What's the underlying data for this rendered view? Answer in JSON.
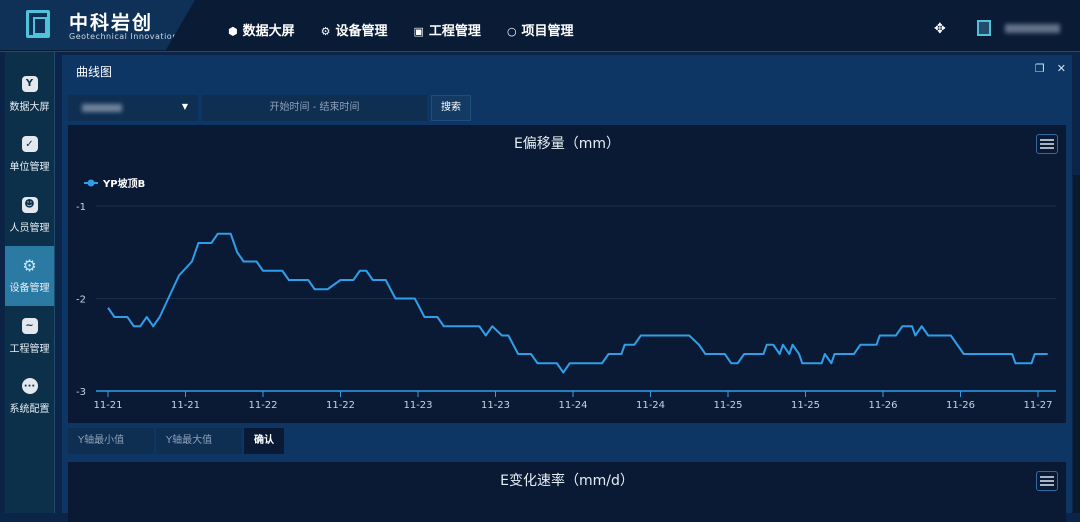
{
  "brand": {
    "name": "中科岩创",
    "subtitle": "Geotechnical Innovation"
  },
  "nav": [
    {
      "label": "数据大屏",
      "icon": "cube-icon"
    },
    {
      "label": "设备管理",
      "icon": "gear-icon"
    },
    {
      "label": "工程管理",
      "icon": "chart-monitor-icon"
    },
    {
      "label": "项目管理",
      "icon": "circle-icon"
    }
  ],
  "sidebar": {
    "items": [
      {
        "label": "数据大屏",
        "icon": "cube-icon"
      },
      {
        "label": "单位管理",
        "icon": "calendar-check-icon"
      },
      {
        "label": "人员管理",
        "icon": "person-card-icon"
      },
      {
        "label": "设备管理",
        "icon": "gear-icon",
        "active": true
      },
      {
        "label": "工程管理",
        "icon": "chart-monitor-icon"
      },
      {
        "label": "系统配置",
        "icon": "more-icon"
      }
    ]
  },
  "panel": {
    "title": "曲线图"
  },
  "filters": {
    "date_placeholder": "开始时间 - 结束时间",
    "search_label": "搜索"
  },
  "yaxis_controls": {
    "min_placeholder": "Y轴最小值",
    "max_placeholder": "Y轴最大值",
    "confirm_label": "确认"
  },
  "colors": {
    "accent": "#2f9ee8",
    "background": "#0a1a35"
  },
  "chart_data": [
    {
      "type": "line",
      "title": "E偏移量（mm）",
      "legend": {
        "position": "top-left"
      },
      "grid": true,
      "ylim": [
        -3,
        -1
      ],
      "yticks": [
        "-1",
        "-2",
        "-3"
      ],
      "xticks": [
        "11-21",
        "11-21",
        "11-22",
        "11-22",
        "11-23",
        "11-23",
        "11-24",
        "11-24",
        "11-25",
        "11-25",
        "11-26",
        "11-26",
        "11-27"
      ],
      "series": [
        {
          "name": "YP坡顶B",
          "color": "#2f9ee8",
          "points": [
            [
              "11-21 00:00",
              -2.1
            ],
            [
              "11-21 01:00",
              -2.2
            ],
            [
              "11-21 03:00",
              -2.2
            ],
            [
              "11-21 04:00",
              -2.3
            ],
            [
              "11-21 05:00",
              -2.3
            ],
            [
              "11-21 06:00",
              -2.2
            ],
            [
              "11-21 07:00",
              -2.3
            ],
            [
              "11-21 08:00",
              -2.2
            ],
            [
              "11-21 10:00",
              -1.9
            ],
            [
              "11-21 11:00",
              -1.75
            ],
            [
              "11-21 13:00",
              -1.6
            ],
            [
              "11-21 14:00",
              -1.4
            ],
            [
              "11-21 16:00",
              -1.4
            ],
            [
              "11-21 17:00",
              -1.3
            ],
            [
              "11-21 19:00",
              -1.3
            ],
            [
              "11-21 20:00",
              -1.5
            ],
            [
              "11-21 21:00",
              -1.6
            ],
            [
              "11-21 23:00",
              -1.6
            ],
            [
              "11-22 00:00",
              -1.7
            ],
            [
              "11-22 03:00",
              -1.7
            ],
            [
              "11-22 04:00",
              -1.8
            ],
            [
              "11-22 07:00",
              -1.8
            ],
            [
              "11-22 08:00",
              -1.9
            ],
            [
              "11-22 10:00",
              -1.9
            ],
            [
              "11-22 12:00",
              -1.8
            ],
            [
              "11-22 14:00",
              -1.8
            ],
            [
              "11-22 15:00",
              -1.7
            ],
            [
              "11-22 16:00",
              -1.7
            ],
            [
              "11-22 17:00",
              -1.8
            ],
            [
              "11-22 19:00",
              -1.8
            ],
            [
              "11-22 20:30",
              -2.0
            ],
            [
              "11-22 23:30",
              -2.0
            ],
            [
              "11-23 01:00",
              -2.2
            ],
            [
              "11-23 03:00",
              -2.2
            ],
            [
              "11-23 04:00",
              -2.3
            ],
            [
              "11-23 09:30",
              -2.3
            ],
            [
              "11-23 10:30",
              -2.4
            ],
            [
              "11-23 11:30",
              -2.3
            ],
            [
              "11-23 13:00",
              -2.4
            ],
            [
              "11-23 14:00",
              -2.4
            ],
            [
              "11-23 15:30",
              -2.6
            ],
            [
              "11-23 17:30",
              -2.6
            ],
            [
              "11-23 18:30",
              -2.7
            ],
            [
              "11-23 21:30",
              -2.7
            ],
            [
              "11-23 22:30",
              -2.8
            ],
            [
              "11-23 23:30",
              -2.7
            ],
            [
              "11-24 04:30",
              -2.7
            ],
            [
              "11-24 05:30",
              -2.6
            ],
            [
              "11-24 07:30",
              -2.6
            ],
            [
              "11-24 08:00",
              -2.5
            ],
            [
              "11-24 09:30",
              -2.5
            ],
            [
              "11-24 10:30",
              -2.4
            ],
            [
              "11-24 18:00",
              -2.4
            ],
            [
              "11-24 19:30",
              -2.5
            ],
            [
              "11-24 20:30",
              -2.6
            ],
            [
              "11-24 23:30",
              -2.6
            ],
            [
              "11-25 00:30",
              -2.7
            ],
            [
              "11-25 01:30",
              -2.7
            ],
            [
              "11-25 02:30",
              -2.6
            ],
            [
              "11-25 05:30",
              -2.6
            ],
            [
              "11-25 06:00",
              -2.5
            ],
            [
              "11-25 07:00",
              -2.5
            ],
            [
              "11-25 08:00",
              -2.6
            ],
            [
              "11-25 08:30",
              -2.5
            ],
            [
              "11-25 09:30",
              -2.6
            ],
            [
              "11-25 10:00",
              -2.5
            ],
            [
              "11-25 11:00",
              -2.6
            ],
            [
              "11-25 11:30",
              -2.7
            ],
            [
              "11-25 14:30",
              -2.7
            ],
            [
              "11-25 15:00",
              -2.6
            ],
            [
              "11-25 16:00",
              -2.7
            ],
            [
              "11-25 16:30",
              -2.6
            ],
            [
              "11-25 19:30",
              -2.6
            ],
            [
              "11-25 20:30",
              -2.5
            ],
            [
              "11-25 23:00",
              -2.5
            ],
            [
              "11-25 23:30",
              -2.4
            ],
            [
              "11-26 02:00",
              -2.4
            ],
            [
              "11-26 03:00",
              -2.3
            ],
            [
              "11-26 04:30",
              -2.3
            ],
            [
              "11-26 05:00",
              -2.4
            ],
            [
              "11-26 06:00",
              -2.3
            ],
            [
              "11-26 07:00",
              -2.4
            ],
            [
              "11-26 10:30",
              -2.4
            ],
            [
              "11-26 12:30",
              -2.6
            ],
            [
              "11-26 20:00",
              -2.6
            ],
            [
              "11-26 20:30",
              -2.7
            ],
            [
              "11-26 23:00",
              -2.7
            ],
            [
              "11-26 23:30",
              -2.6
            ],
            [
              "11-27 01:30",
              -2.6
            ]
          ]
        }
      ]
    },
    {
      "type": "line",
      "title": "E变化速率（mm/d）"
    }
  ]
}
